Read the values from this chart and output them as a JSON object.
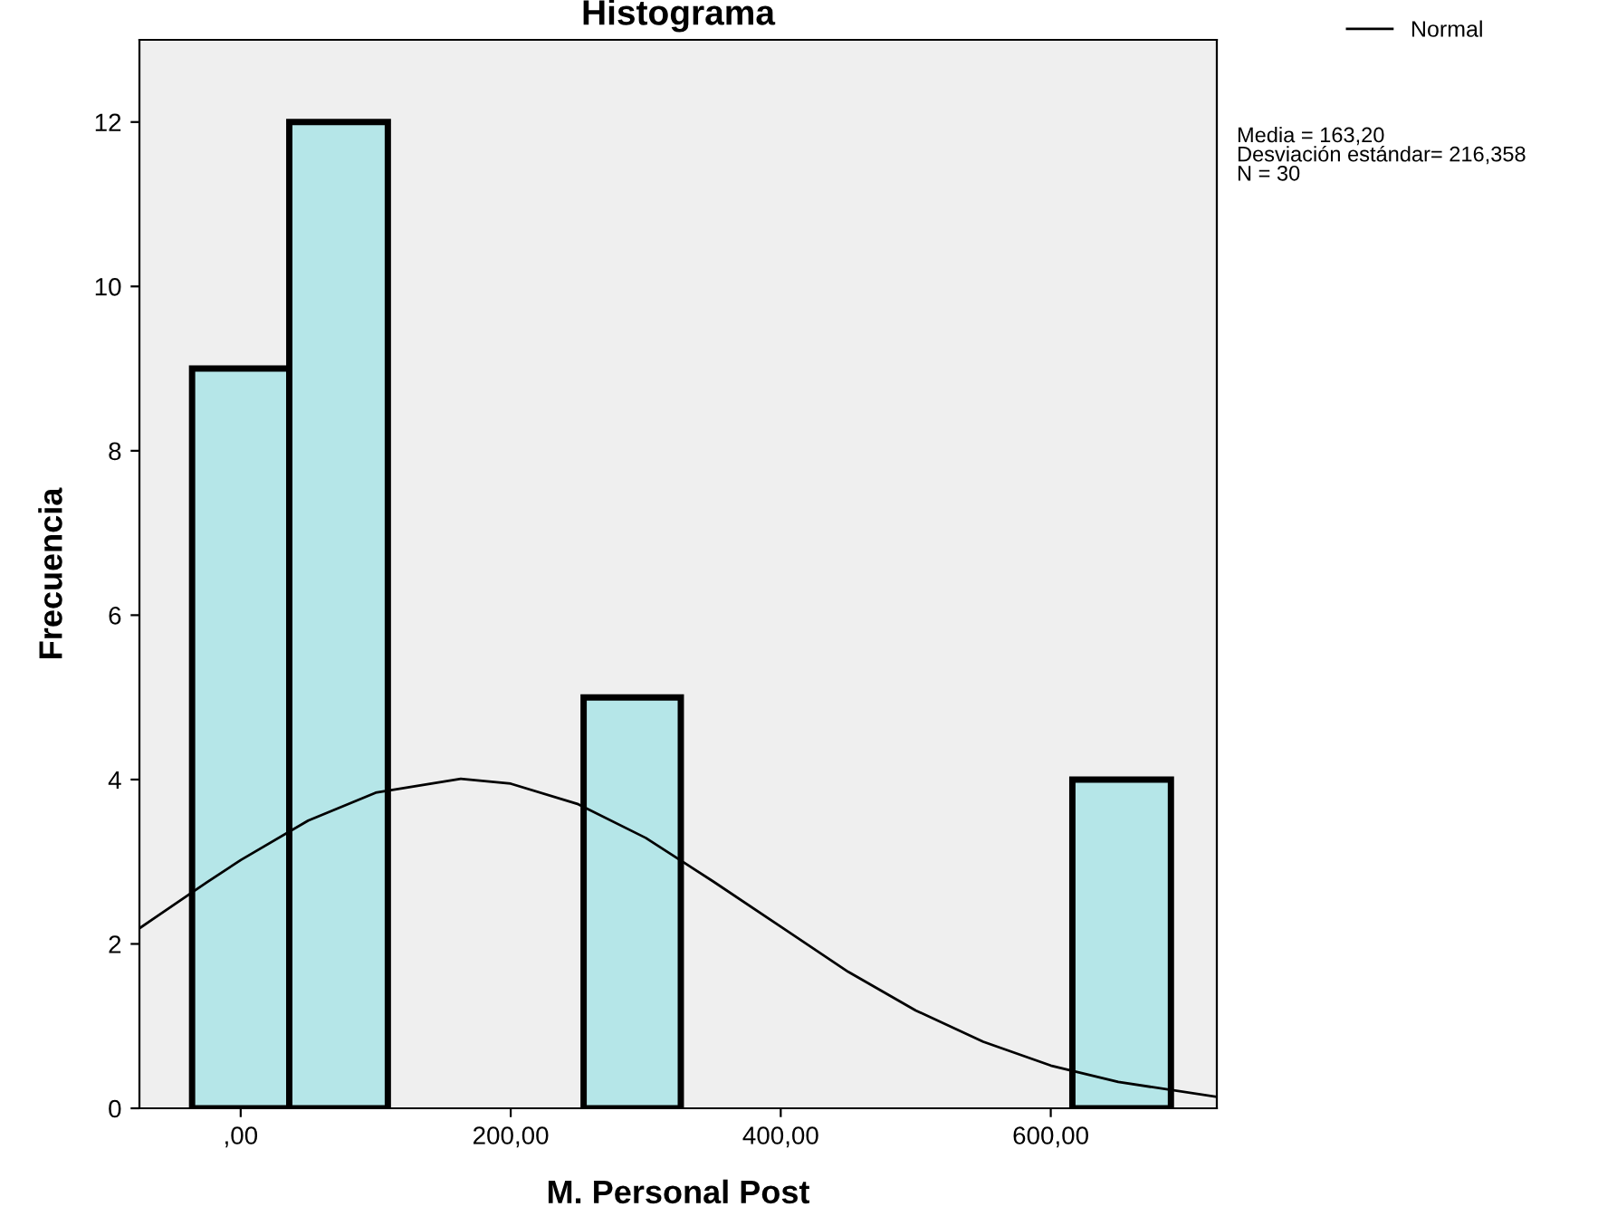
{
  "chart_data": {
    "type": "histogram",
    "title": "Histograma",
    "xlabel": "M. Personal Post",
    "ylabel": "Frecuencia",
    "bins": [
      -36,
      36,
      109,
      254,
      326,
      616,
      689
    ],
    "series": [
      {
        "color": "#b5e6e8",
        "values": [
          9,
          12,
          0,
          5,
          0,
          4
        ]
      },
      {
        "type": "line",
        "name": "Normal",
        "color": "#000000",
        "x": [
          -75,
          -25,
          0,
          50,
          100,
          163,
          200,
          250,
          300,
          350,
          400,
          450,
          500,
          550,
          600,
          650,
          723
        ],
        "values": [
          2.19,
          2.75,
          3.02,
          3.5,
          3.84,
          4.01,
          3.95,
          3.7,
          3.29,
          2.76,
          2.21,
          1.66,
          1.19,
          0.81,
          0.52,
          0.32,
          0.14
        ]
      }
    ],
    "xlim": [
      -75,
      723
    ],
    "ylim": [
      0,
      13
    ],
    "xticks": [
      {
        "value": 0,
        "label": ",00"
      },
      {
        "value": 200,
        "label": "200,00"
      },
      {
        "value": 400,
        "label": "400,00"
      },
      {
        "value": 600,
        "label": "600,00"
      }
    ],
    "yticks": [
      0,
      2,
      4,
      6,
      8,
      10,
      12
    ],
    "grid": false,
    "legend": "top right",
    "marker": "none",
    "line_style": "solid",
    "annotations": [
      "Media = 163,20",
      "Desviación estándar= 216,358",
      "N = 30"
    ]
  }
}
